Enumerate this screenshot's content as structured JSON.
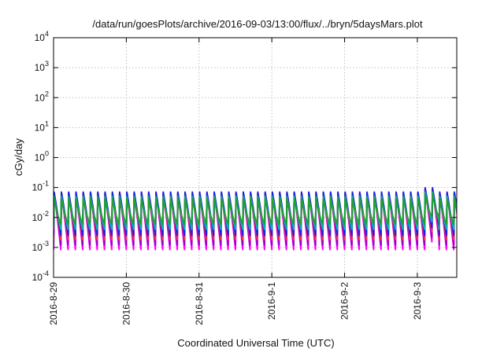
{
  "chart_data": {
    "type": "line",
    "title": "/data/run/goesPlots/archive/2016-09-03/13:00/flux/../bryn/5daysMars.plot",
    "xlabel": "Coordinated Universal Time (UTC)",
    "ylabel": "cGy/day",
    "y_scale": "log",
    "ylim_exponents": [
      -4,
      4
    ],
    "y_ticks": [
      {
        "base": "10",
        "exp": "-4"
      },
      {
        "base": "10",
        "exp": "-3"
      },
      {
        "base": "10",
        "exp": "-2"
      },
      {
        "base": "10",
        "exp": "-1"
      },
      {
        "base": "10",
        "exp": "0"
      },
      {
        "base": "10",
        "exp": "1"
      },
      {
        "base": "10",
        "exp": "2"
      },
      {
        "base": "10",
        "exp": "3"
      },
      {
        "base": "10",
        "exp": "4"
      }
    ],
    "x_range": [
      "2016-08-29T00:00",
      "2016-09-03T13:00"
    ],
    "x_ticks": [
      "2016-8-29",
      "2016-8-30",
      "2016-8-31",
      "2016-9-1",
      "2016-9-2",
      "2016-9-3"
    ],
    "grid": true,
    "legend": "none",
    "pattern": {
      "description_hours_per_cycle": 2.4,
      "series": [
        {
          "color": "#ff00ff",
          "peak": 0.055,
          "trough": 0.00085
        },
        {
          "color": "#9400d3",
          "peak": 0.065,
          "trough": 0.0012
        },
        {
          "color": "#ff3030",
          "peak": 0.06,
          "trough": 0.0018
        },
        {
          "color": "#1e1ee0",
          "peak": 0.07,
          "trough": 0.0025
        },
        {
          "color": "#00b0c0",
          "peak": 0.05,
          "trough": 0.004
        },
        {
          "color": "#20a030",
          "peak": 0.045,
          "trough": 0.006
        }
      ]
    }
  }
}
